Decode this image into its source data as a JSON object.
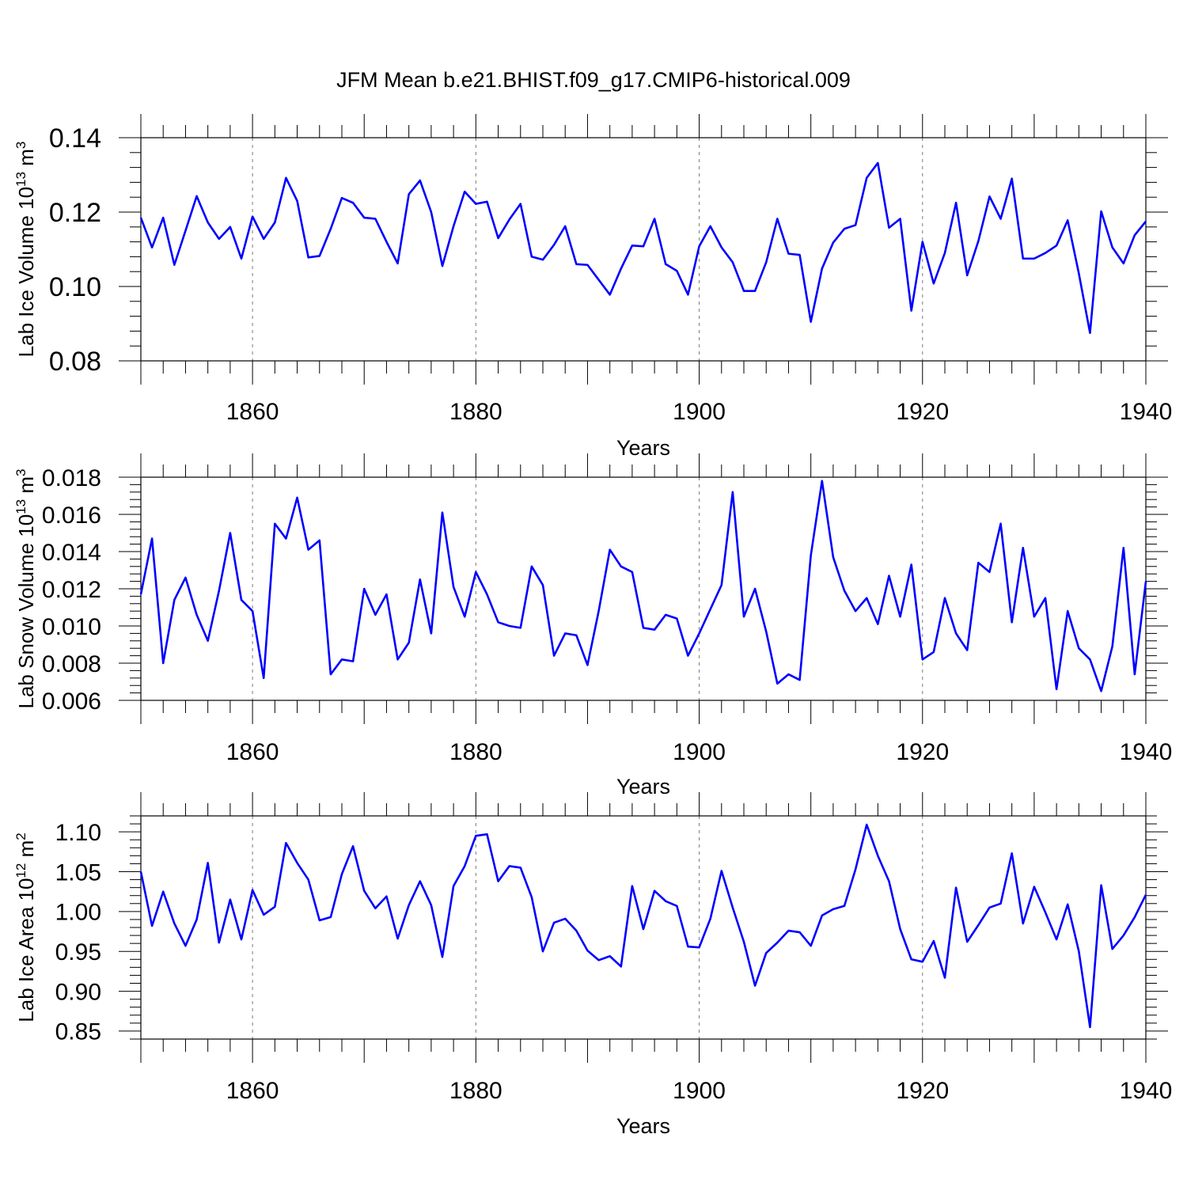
{
  "title": "JFM Mean b.e21.BHIST.f09_g17.CMIP6-historical.009",
  "line_color": "#0000ff",
  "chart_data": [
    {
      "type": "line",
      "xlabel": "Years",
      "ylabel": {
        "base": "Lab Ice Volume 10",
        "exp": "13",
        "unit": " m",
        "unit_exp": "3"
      },
      "xlim": [
        1850,
        1940
      ],
      "ylim": [
        0.08,
        0.14
      ],
      "yticks": [
        0.08,
        0.1,
        0.12,
        0.14
      ],
      "yticklabels": [
        "0.08",
        "0.10",
        "0.12",
        "0.14"
      ],
      "ydecimals": 2,
      "xticks": [
        1860,
        1880,
        1900,
        1920,
        1940
      ],
      "xticklabels": [
        "1860",
        "1880",
        "1900",
        "1920",
        "1940"
      ],
      "gridlines_x": [
        1860,
        1880,
        1900,
        1920
      ],
      "series": [
        {
          "name": "Lab Ice Volume",
          "x0": 1850,
          "values": [
            0.1185,
            0.1105,
            0.1185,
            0.1058,
            0.115,
            0.1243,
            0.1172,
            0.1128,
            0.116,
            0.1075,
            0.1188,
            0.1128,
            0.1172,
            0.1292,
            0.123,
            0.1078,
            0.1082,
            0.1155,
            0.1238,
            0.1225,
            0.1185,
            0.1182,
            0.112,
            0.1062,
            0.1248,
            0.1285,
            0.12,
            0.1055,
            0.1162,
            0.1255,
            0.1222,
            0.1228,
            0.113,
            0.118,
            0.1222,
            0.108,
            0.1072,
            0.1112,
            0.1162,
            0.106,
            0.1058,
            0.1018,
            0.0978,
            0.1048,
            0.111,
            0.1108,
            0.1182,
            0.106,
            0.1042,
            0.0978,
            0.1108,
            0.1162,
            0.1105,
            0.1065,
            0.0988,
            0.0988,
            0.1065,
            0.1182,
            0.1088,
            0.1085,
            0.0905,
            0.1048,
            0.1118,
            0.1155,
            0.1165,
            0.1292,
            0.1332,
            0.1158,
            0.1182,
            0.0935,
            0.112,
            0.1008,
            0.109,
            0.1225,
            0.103,
            0.1122,
            0.1242,
            0.1182,
            0.129,
            0.1075,
            0.1075,
            0.109,
            0.111,
            0.1178,
            0.1035,
            0.0875,
            0.1202,
            0.1105,
            0.1062,
            0.1138,
            0.1175
          ]
        }
      ]
    },
    {
      "type": "line",
      "xlabel": "Years",
      "ylabel": {
        "base": "Lab Snow Volume 10",
        "exp": "13",
        "unit": " m",
        "unit_exp": "3"
      },
      "xlim": [
        1850,
        1940
      ],
      "ylim": [
        0.006,
        0.018
      ],
      "yticks": [
        0.006,
        0.008,
        0.01,
        0.012,
        0.014,
        0.016,
        0.018
      ],
      "yticklabels": [
        "0.006",
        "0.008",
        "0.010",
        "0.012",
        "0.014",
        "0.016",
        "0.018"
      ],
      "ydecimals": 3,
      "xticks": [
        1860,
        1880,
        1900,
        1920,
        1940
      ],
      "xticklabels": [
        "1860",
        "1880",
        "1900",
        "1920",
        "1940"
      ],
      "gridlines_x": [
        1860,
        1880,
        1900,
        1920
      ],
      "series": [
        {
          "name": "Lab Snow Volume",
          "x0": 1850,
          "values": [
            0.0117,
            0.0147,
            0.008,
            0.0114,
            0.0126,
            0.0106,
            0.0092,
            0.0119,
            0.015,
            0.0114,
            0.0108,
            0.0072,
            0.0155,
            0.0147,
            0.0169,
            0.0141,
            0.0146,
            0.0074,
            0.0082,
            0.0081,
            0.012,
            0.0106,
            0.0117,
            0.0082,
            0.0091,
            0.0125,
            0.0096,
            0.0161,
            0.0121,
            0.0105,
            0.0129,
            0.0117,
            0.0102,
            0.01,
            0.0099,
            0.0132,
            0.0122,
            0.0084,
            0.0096,
            0.0095,
            0.0079,
            0.0108,
            0.0141,
            0.0132,
            0.0129,
            0.0099,
            0.0098,
            0.0106,
            0.0104,
            0.0084,
            0.0096,
            0.0109,
            0.0122,
            0.0172,
            0.0105,
            0.012,
            0.0097,
            0.0069,
            0.0074,
            0.0071,
            0.0138,
            0.0178,
            0.0137,
            0.0119,
            0.0108,
            0.0115,
            0.0101,
            0.0127,
            0.0105,
            0.0133,
            0.0082,
            0.0086,
            0.0115,
            0.0096,
            0.0087,
            0.0134,
            0.0129,
            0.0155,
            0.0102,
            0.0142,
            0.0105,
            0.0115,
            0.0066,
            0.0108,
            0.0088,
            0.0082,
            0.0065,
            0.0089,
            0.0142,
            0.0074,
            0.0124
          ]
        }
      ]
    },
    {
      "type": "line",
      "xlabel": "Years",
      "ylabel": {
        "base": "Lab Ice Area 10",
        "exp": "12",
        "unit": " m",
        "unit_exp": "2"
      },
      "xlim": [
        1850,
        1940
      ],
      "ylim": [
        0.84,
        1.12
      ],
      "yticks": [
        0.85,
        0.9,
        0.95,
        1.0,
        1.05,
        1.1
      ],
      "yticklabels": [
        "0.85",
        "0.90",
        "0.95",
        "1.00",
        "1.05",
        "1.10"
      ],
      "ydecimals": 2,
      "xticks": [
        1860,
        1880,
        1900,
        1920,
        1940
      ],
      "xticklabels": [
        "1860",
        "1880",
        "1900",
        "1920",
        "1940"
      ],
      "gridlines_x": [
        1860,
        1880,
        1900,
        1920
      ],
      "series": [
        {
          "name": "Lab Ice Area",
          "x0": 1850,
          "values": [
            1.05,
            0.982,
            1.025,
            0.985,
            0.957,
            0.99,
            1.061,
            0.961,
            1.015,
            0.965,
            1.027,
            0.996,
            1.006,
            1.086,
            1.061,
            1.04,
            0.989,
            0.993,
            1.047,
            1.082,
            1.026,
            1.004,
            1.019,
            0.966,
            1.008,
            1.038,
            1.008,
            0.943,
            1.032,
            1.057,
            1.095,
            1.097,
            1.038,
            1.057,
            1.055,
            1.018,
            0.95,
            0.986,
            0.991,
            0.976,
            0.951,
            0.939,
            0.944,
            0.931,
            1.032,
            0.978,
            1.026,
            1.013,
            1.007,
            0.956,
            0.955,
            0.991,
            1.051,
            1.005,
            0.962,
            0.907,
            0.948,
            0.961,
            0.976,
            0.974,
            0.957,
            0.995,
            1.003,
            1.007,
            1.053,
            1.109,
            1.07,
            1.038,
            0.978,
            0.94,
            0.937,
            0.963,
            0.917,
            1.03,
            0.962,
            0.983,
            1.005,
            1.01,
            1.073,
            0.985,
            1.031,
            0.999,
            0.965,
            1.009,
            0.95,
            0.855,
            1.033,
            0.953,
            0.97,
            0.993,
            1.021
          ]
        }
      ]
    }
  ]
}
